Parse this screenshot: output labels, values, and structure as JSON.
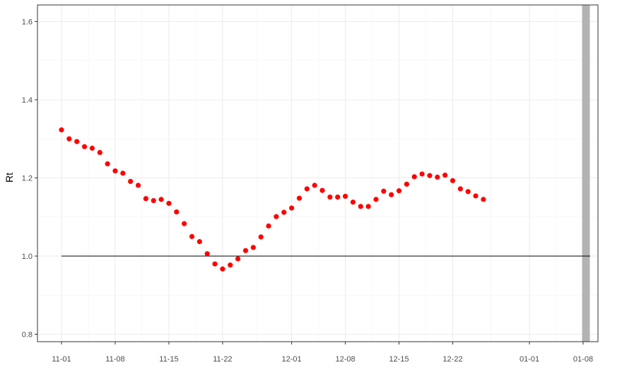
{
  "chart_data": {
    "type": "scatter",
    "ylabel": "Rt",
    "xlabel": "",
    "title": "",
    "x_ticks": [
      "11-01",
      "11-08",
      "11-15",
      "11-22",
      "12-01",
      "12-08",
      "12-15",
      "12-22",
      "01-01",
      "01-08"
    ],
    "y_ticks": [
      "0.8",
      "1.0",
      "1.2",
      "1.4",
      "1.6"
    ],
    "xlim": [
      "10-28",
      "01-12"
    ],
    "ylim": [
      0.76,
      1.64
    ],
    "grid": true,
    "reference_line": {
      "y": 1.0,
      "from": "11-01",
      "to": "01-08"
    },
    "shaded_band": {
      "from": "01-08",
      "to": "01-09"
    },
    "series": [
      {
        "point_color": "#ff0000",
        "x": [
          "11-01",
          "11-02",
          "11-03",
          "11-04",
          "11-05",
          "11-06",
          "11-07",
          "11-08",
          "11-09",
          "11-10",
          "11-11",
          "11-12",
          "11-13",
          "11-14",
          "11-15",
          "11-16",
          "11-17",
          "11-18",
          "11-19",
          "11-20",
          "11-21",
          "11-22",
          "11-23",
          "11-24",
          "11-25",
          "11-26",
          "11-27",
          "11-28",
          "11-29",
          "11-30",
          "12-01",
          "12-02",
          "12-03",
          "12-04",
          "12-05",
          "12-06",
          "12-07",
          "12-08",
          "12-09",
          "12-10",
          "12-11",
          "12-12",
          "12-13",
          "12-14",
          "12-15",
          "12-16",
          "12-17",
          "12-18",
          "12-19",
          "12-20",
          "12-21",
          "12-22",
          "12-23",
          "12-24",
          "12-25",
          "12-26"
        ],
        "y": [
          1.323,
          1.3,
          1.293,
          1.28,
          1.276,
          1.265,
          1.236,
          1.218,
          1.212,
          1.191,
          1.181,
          1.147,
          1.142,
          1.145,
          1.135,
          1.113,
          1.083,
          1.05,
          1.037,
          1.006,
          0.98,
          0.967,
          0.977,
          0.993,
          1.014,
          1.022,
          1.049,
          1.077,
          1.101,
          1.112,
          1.123,
          1.148,
          1.172,
          1.181,
          1.168,
          1.151,
          1.151,
          1.153,
          1.138,
          1.127,
          1.127,
          1.145,
          1.166,
          1.157,
          1.167,
          1.184,
          1.203,
          1.21,
          1.206,
          1.202,
          1.207,
          1.193,
          1.172,
          1.165,
          1.154,
          1.145
        ]
      }
    ]
  }
}
